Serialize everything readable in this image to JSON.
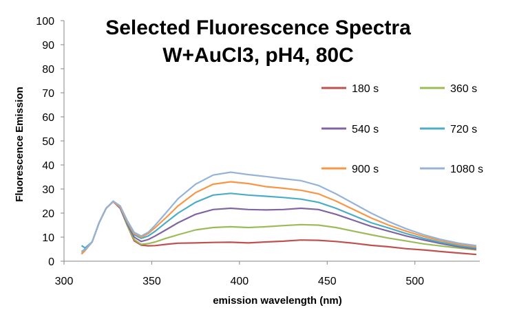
{
  "chart_data": {
    "type": "line",
    "title_lines": [
      "Selected Fluorescence Spectra",
      "W+AuCl3, pH4, 80C"
    ],
    "xlabel": "emission wavelength (nm)",
    "ylabel": "Fluorescence Emission",
    "xlim": [
      300,
      537
    ],
    "ylim": [
      0,
      100
    ],
    "xticks": [
      300,
      350,
      400,
      450,
      500
    ],
    "yticks": [
      0,
      10,
      20,
      30,
      40,
      50,
      60,
      70,
      80,
      90,
      100
    ],
    "grid": false,
    "legend_position": "top-right",
    "series": [
      {
        "name": "180 s",
        "color": "#C0504D",
        "points": [
          [
            310,
            3
          ],
          [
            312,
            4.5
          ],
          [
            316,
            8
          ],
          [
            320,
            16
          ],
          [
            324,
            22
          ],
          [
            328,
            24.8
          ],
          [
            332,
            22
          ],
          [
            336,
            15
          ],
          [
            340,
            8.5
          ],
          [
            344,
            6.7
          ],
          [
            348,
            6.4
          ],
          [
            352,
            6.5
          ],
          [
            358,
            7
          ],
          [
            365,
            7.5
          ],
          [
            375,
            7.6
          ],
          [
            385,
            7.8
          ],
          [
            395,
            7.9
          ],
          [
            405,
            7.6
          ],
          [
            415,
            8
          ],
          [
            425,
            8.3
          ],
          [
            435,
            8.8
          ],
          [
            445,
            8.7
          ],
          [
            455,
            8.2
          ],
          [
            465,
            7.5
          ],
          [
            475,
            6.6
          ],
          [
            485,
            6
          ],
          [
            495,
            5.2
          ],
          [
            505,
            4.7
          ],
          [
            515,
            4
          ],
          [
            525,
            3.4
          ],
          [
            535,
            2.8
          ]
        ]
      },
      {
        "name": "360 s",
        "color": "#9BBB59",
        "points": [
          [
            310,
            3.5
          ],
          [
            312,
            4.5
          ],
          [
            316,
            8
          ],
          [
            320,
            16
          ],
          [
            324,
            22
          ],
          [
            328,
            24.8
          ],
          [
            332,
            22
          ],
          [
            336,
            15
          ],
          [
            340,
            9
          ],
          [
            344,
            7
          ],
          [
            348,
            7.3
          ],
          [
            352,
            8
          ],
          [
            358,
            9.5
          ],
          [
            365,
            11
          ],
          [
            375,
            13
          ],
          [
            385,
            14
          ],
          [
            395,
            14.3
          ],
          [
            405,
            14
          ],
          [
            415,
            14.3
          ],
          [
            425,
            14.8
          ],
          [
            435,
            15.2
          ],
          [
            445,
            15
          ],
          [
            455,
            14
          ],
          [
            465,
            12.5
          ],
          [
            475,
            11
          ],
          [
            485,
            9.6
          ],
          [
            495,
            8.4
          ],
          [
            505,
            7.2
          ],
          [
            515,
            6.3
          ],
          [
            525,
            5.5
          ],
          [
            535,
            4.7
          ]
        ]
      },
      {
        "name": "540 s",
        "color": "#8064A2",
        "points": [
          [
            310,
            4
          ],
          [
            312,
            5
          ],
          [
            316,
            8
          ],
          [
            320,
            16
          ],
          [
            324,
            22
          ],
          [
            328,
            24.8
          ],
          [
            332,
            22
          ],
          [
            336,
            15.5
          ],
          [
            340,
            10
          ],
          [
            344,
            8.2
          ],
          [
            348,
            9
          ],
          [
            352,
            10.5
          ],
          [
            358,
            13
          ],
          [
            365,
            16
          ],
          [
            375,
            19.5
          ],
          [
            385,
            21.5
          ],
          [
            395,
            22
          ],
          [
            405,
            21.5
          ],
          [
            415,
            21.3
          ],
          [
            425,
            21.5
          ],
          [
            435,
            22
          ],
          [
            445,
            21.5
          ],
          [
            455,
            19.5
          ],
          [
            465,
            17
          ],
          [
            475,
            14.5
          ],
          [
            485,
            12.5
          ],
          [
            495,
            10.5
          ],
          [
            505,
            8.8
          ],
          [
            515,
            7.3
          ],
          [
            525,
            6
          ],
          [
            535,
            5
          ]
        ]
      },
      {
        "name": "720 s",
        "color": "#4BACC6",
        "points": [
          [
            310,
            6.5
          ],
          [
            312,
            5.5
          ],
          [
            316,
            8
          ],
          [
            320,
            16
          ],
          [
            324,
            22
          ],
          [
            328,
            24.8
          ],
          [
            332,
            22.5
          ],
          [
            336,
            16
          ],
          [
            340,
            11
          ],
          [
            344,
            9.5
          ],
          [
            348,
            10.5
          ],
          [
            352,
            12.5
          ],
          [
            358,
            16
          ],
          [
            365,
            20
          ],
          [
            375,
            24.5
          ],
          [
            385,
            27.5
          ],
          [
            395,
            28.2
          ],
          [
            405,
            27.5
          ],
          [
            415,
            27
          ],
          [
            425,
            26.5
          ],
          [
            435,
            25.8
          ],
          [
            445,
            24.5
          ],
          [
            455,
            22
          ],
          [
            465,
            19
          ],
          [
            475,
            16
          ],
          [
            485,
            13.8
          ],
          [
            495,
            11.5
          ],
          [
            505,
            9.5
          ],
          [
            515,
            7.8
          ],
          [
            525,
            6.5
          ],
          [
            535,
            5.5
          ]
        ]
      },
      {
        "name": "900 s",
        "color": "#F79646",
        "points": [
          [
            310,
            3
          ],
          [
            312,
            4.5
          ],
          [
            316,
            8
          ],
          [
            320,
            16
          ],
          [
            324,
            22
          ],
          [
            328,
            24.8
          ],
          [
            332,
            22.5
          ],
          [
            336,
            16.5
          ],
          [
            340,
            11.5
          ],
          [
            344,
            10
          ],
          [
            348,
            11.5
          ],
          [
            352,
            14
          ],
          [
            358,
            18
          ],
          [
            365,
            23
          ],
          [
            375,
            28.5
          ],
          [
            385,
            32
          ],
          [
            395,
            33
          ],
          [
            405,
            32.3
          ],
          [
            415,
            31
          ],
          [
            425,
            30.3
          ],
          [
            435,
            29.5
          ],
          [
            445,
            28
          ],
          [
            455,
            25
          ],
          [
            465,
            21.5
          ],
          [
            475,
            18
          ],
          [
            485,
            15
          ],
          [
            495,
            12.5
          ],
          [
            505,
            10.3
          ],
          [
            515,
            8.5
          ],
          [
            525,
            7
          ],
          [
            535,
            6
          ]
        ]
      },
      {
        "name": "1080 s",
        "color": "#95B3D7",
        "points": [
          [
            310,
            4
          ],
          [
            312,
            4.8
          ],
          [
            316,
            8
          ],
          [
            320,
            16
          ],
          [
            324,
            22
          ],
          [
            328,
            25
          ],
          [
            332,
            23
          ],
          [
            336,
            17
          ],
          [
            340,
            12
          ],
          [
            344,
            10.5
          ],
          [
            348,
            12
          ],
          [
            352,
            15
          ],
          [
            358,
            20
          ],
          [
            365,
            26
          ],
          [
            375,
            32
          ],
          [
            385,
            35.8
          ],
          [
            395,
            37
          ],
          [
            405,
            36
          ],
          [
            415,
            35.2
          ],
          [
            425,
            34.3
          ],
          [
            435,
            33.5
          ],
          [
            445,
            31.5
          ],
          [
            455,
            28
          ],
          [
            465,
            24
          ],
          [
            475,
            20
          ],
          [
            485,
            16.5
          ],
          [
            495,
            13.5
          ],
          [
            505,
            11
          ],
          [
            515,
            9
          ],
          [
            525,
            7.5
          ],
          [
            535,
            6.5
          ]
        ]
      }
    ]
  }
}
